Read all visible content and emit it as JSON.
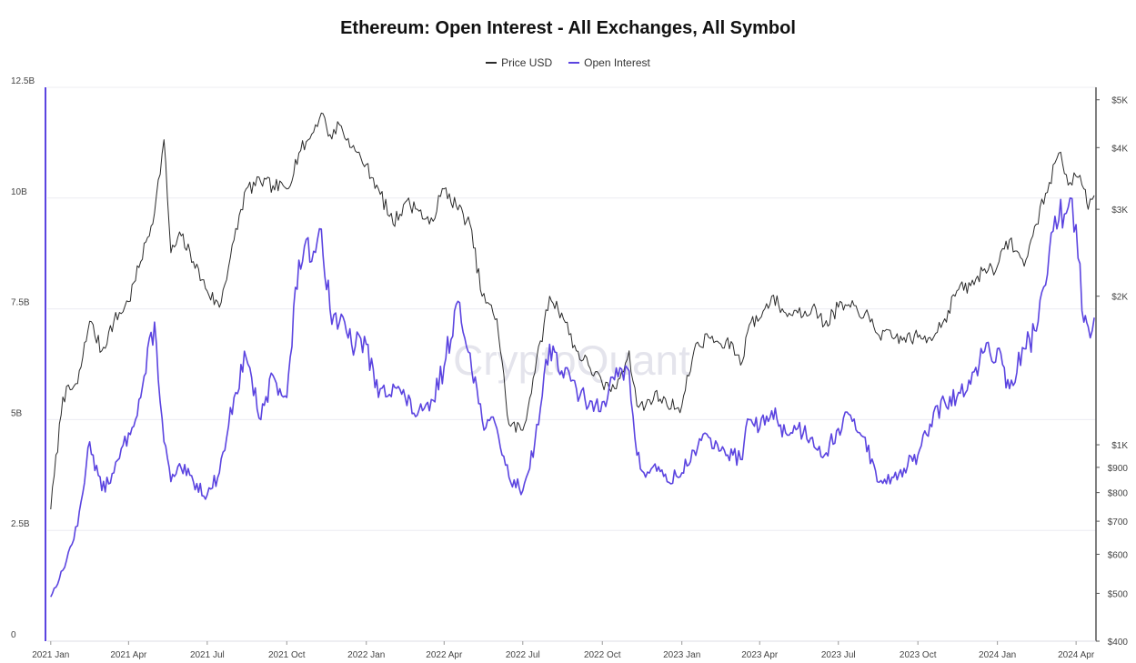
{
  "chart_data": {
    "type": "line",
    "title": "Ethereum: Open Interest - All Exchanges, All Symbol",
    "watermark": "CryptoQuant",
    "x": [
      "2021-01-01",
      "2021-01-15",
      "2021-02-01",
      "2021-02-15",
      "2021-03-01",
      "2021-03-15",
      "2021-04-01",
      "2021-04-15",
      "2021-05-01",
      "2021-05-12",
      "2021-05-20",
      "2021-06-01",
      "2021-06-15",
      "2021-07-01",
      "2021-07-15",
      "2021-08-01",
      "2021-08-15",
      "2021-09-01",
      "2021-09-15",
      "2021-10-01",
      "2021-10-15",
      "2021-11-01",
      "2021-11-10",
      "2021-11-20",
      "2021-12-01",
      "2021-12-15",
      "2022-01-01",
      "2022-01-15",
      "2022-02-01",
      "2022-02-15",
      "2022-03-01",
      "2022-03-15",
      "2022-04-01",
      "2022-04-15",
      "2022-05-01",
      "2022-05-15",
      "2022-06-01",
      "2022-06-15",
      "2022-07-01",
      "2022-07-15",
      "2022-08-01",
      "2022-08-15",
      "2022-09-01",
      "2022-09-15",
      "2022-10-01",
      "2022-10-15",
      "2022-11-01",
      "2022-11-10",
      "2022-11-20",
      "2022-12-01",
      "2022-12-15",
      "2023-01-01",
      "2023-01-15",
      "2023-02-01",
      "2023-02-15",
      "2023-03-01",
      "2023-03-10",
      "2023-03-20",
      "2023-04-01",
      "2023-04-15",
      "2023-05-01",
      "2023-05-15",
      "2023-06-01",
      "2023-06-15",
      "2023-07-01",
      "2023-07-15",
      "2023-08-01",
      "2023-08-15",
      "2023-09-01",
      "2023-09-15",
      "2023-10-01",
      "2023-10-15",
      "2023-11-01",
      "2023-11-15",
      "2023-12-01",
      "2023-12-15",
      "2024-01-01",
      "2024-01-15",
      "2024-02-01",
      "2024-02-15",
      "2024-03-01",
      "2024-03-12",
      "2024-03-25",
      "2024-04-01",
      "2024-04-10",
      "2024-04-15",
      "2024-04-22"
    ],
    "series": [
      {
        "name": "Price USD",
        "axis": "right",
        "color": "#2b2b2b",
        "values": [
          740,
          1250,
          1330,
          1780,
          1550,
          1780,
          1950,
          2350,
          2950,
          4150,
          2450,
          2650,
          2350,
          2050,
          1900,
          2600,
          3300,
          3400,
          3350,
          3300,
          3900,
          4300,
          4700,
          4250,
          4450,
          4000,
          3700,
          3300,
          2800,
          3100,
          3000,
          2800,
          3300,
          3050,
          2800,
          2000,
          1800,
          1100,
          1070,
          1400,
          2000,
          1850,
          1550,
          1450,
          1330,
          1300,
          1550,
          1200,
          1200,
          1280,
          1200,
          1200,
          1550,
          1650,
          1600,
          1600,
          1450,
          1750,
          1800,
          2000,
          1850,
          1850,
          1900,
          1750,
          1900,
          1900,
          1850,
          1680,
          1650,
          1650,
          1650,
          1650,
          1800,
          2050,
          2100,
          2250,
          2300,
          2600,
          2300,
          2800,
          3400,
          3900,
          3400,
          3500,
          3300,
          3000,
          3200
        ]
      },
      {
        "name": "Open Interest",
        "axis": "left",
        "color": "#5b44e0",
        "values": [
          1.0,
          1.6,
          2.6,
          4.5,
          3.4,
          3.8,
          4.7,
          5.5,
          7.2,
          4.5,
          3.6,
          3.9,
          3.6,
          3.3,
          3.8,
          5.5,
          6.4,
          5.0,
          6.0,
          5.5,
          8.6,
          8.8,
          9.3,
          7.5,
          7.2,
          6.7,
          6.7,
          5.5,
          5.8,
          5.5,
          5.1,
          5.2,
          6.2,
          7.6,
          6.5,
          5.0,
          4.8,
          3.7,
          3.4,
          4.5,
          6.7,
          6.1,
          5.7,
          5.3,
          5.4,
          5.9,
          6.1,
          4.2,
          3.7,
          4.0,
          3.6,
          3.8,
          4.3,
          4.6,
          4.3,
          4.2,
          4.1,
          5.0,
          4.8,
          5.2,
          4.7,
          4.8,
          4.6,
          4.2,
          4.8,
          5.1,
          4.6,
          3.6,
          3.7,
          3.9,
          4.2,
          4.9,
          5.4,
          5.5,
          5.8,
          6.5,
          6.6,
          5.7,
          6.6,
          7.0,
          8.8,
          9.5,
          10.0,
          9.4,
          7.2,
          7.1,
          7.3
        ]
      }
    ],
    "x_ticks": [
      "2021 Jan",
      "2021 Apr",
      "2021 Jul",
      "2021 Oct",
      "2022 Jan",
      "2022 Apr",
      "2022 Jul",
      "2022 Oct",
      "2023 Jan",
      "2023 Apr",
      "2023 Jul",
      "2023 Oct",
      "2024 Jan",
      "2024 Apr"
    ],
    "x_tick_dates": [
      "2021-01-01",
      "2021-04-01",
      "2021-07-01",
      "2021-10-01",
      "2022-01-01",
      "2022-04-01",
      "2022-07-01",
      "2022-10-01",
      "2023-01-01",
      "2023-04-01",
      "2023-07-01",
      "2023-10-01",
      "2024-01-01",
      "2024-04-01"
    ],
    "x_range": [
      "2020-12-28",
      "2024-04-24"
    ],
    "y_left": {
      "ticks": [
        0,
        2.5,
        5,
        7.5,
        10,
        12.5
      ],
      "tick_labels": [
        "0",
        "2.5B",
        "5B",
        "7.5B",
        "10B",
        "12.5B"
      ],
      "range": [
        0,
        12.5
      ],
      "unit": "B"
    },
    "y_right": {
      "scale": "log",
      "ticks": [
        400,
        500,
        600,
        700,
        800,
        900,
        1000,
        2000,
        3000,
        4000,
        5000
      ],
      "tick_labels": [
        "$400",
        "$500",
        "$600",
        "$700",
        "$800",
        "$900",
        "$1K",
        "$2K",
        "$3K",
        "$4K",
        "$5K"
      ],
      "range": [
        400,
        5300
      ]
    },
    "legend": {
      "position": "top-center"
    },
    "grid": "horizontal"
  }
}
